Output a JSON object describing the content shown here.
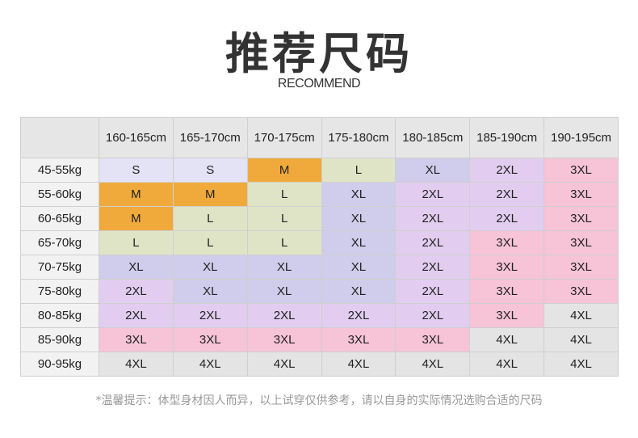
{
  "title": "推荐尺码",
  "subtitle": "RECOMMEND",
  "size_colors": {
    "S": "#e3e3f5",
    "M": "#f0aa3c",
    "L": "#e0e4c6",
    "XL": "#d0cceb",
    "2XL": "#e2cdf0",
    "3XL": "#f6c3d7",
    "4XL": "#e4e4e4"
  },
  "columns": [
    "160-165cm",
    "165-170cm",
    "170-175cm",
    "175-180cm",
    "180-185cm",
    "185-190cm",
    "190-195cm"
  ],
  "rows": [
    {
      "weight": "45-55kg",
      "sizes": [
        "S",
        "S",
        "M",
        "L",
        "XL",
        "2XL",
        "3XL"
      ]
    },
    {
      "weight": "55-60kg",
      "sizes": [
        "M",
        "M",
        "L",
        "XL",
        "2XL",
        "2XL",
        "3XL"
      ]
    },
    {
      "weight": "60-65kg",
      "sizes": [
        "M",
        "L",
        "L",
        "XL",
        "2XL",
        "2XL",
        "3XL"
      ]
    },
    {
      "weight": "65-70kg",
      "sizes": [
        "L",
        "L",
        "L",
        "XL",
        "2XL",
        "3XL",
        "3XL"
      ]
    },
    {
      "weight": "70-75kg",
      "sizes": [
        "XL",
        "XL",
        "XL",
        "XL",
        "2XL",
        "3XL",
        "3XL"
      ]
    },
    {
      "weight": "75-80kg",
      "sizes": [
        "2XL",
        "XL",
        "XL",
        "XL",
        "2XL",
        "3XL",
        "3XL"
      ]
    },
    {
      "weight": "80-85kg",
      "sizes": [
        "2XL",
        "2XL",
        "2XL",
        "2XL",
        "2XL",
        "3XL",
        "4XL"
      ]
    },
    {
      "weight": "85-90kg",
      "sizes": [
        "3XL",
        "3XL",
        "3XL",
        "3XL",
        "3XL",
        "4XL",
        "4XL"
      ]
    },
    {
      "weight": "90-95kg",
      "sizes": [
        "4XL",
        "4XL",
        "4XL",
        "4XL",
        "4XL",
        "4XL",
        "4XL"
      ]
    }
  ],
  "note": "*温馨提示：体型身材因人而异，以上试穿仅供参考，请以自身的实际情况选购合适的尺码"
}
